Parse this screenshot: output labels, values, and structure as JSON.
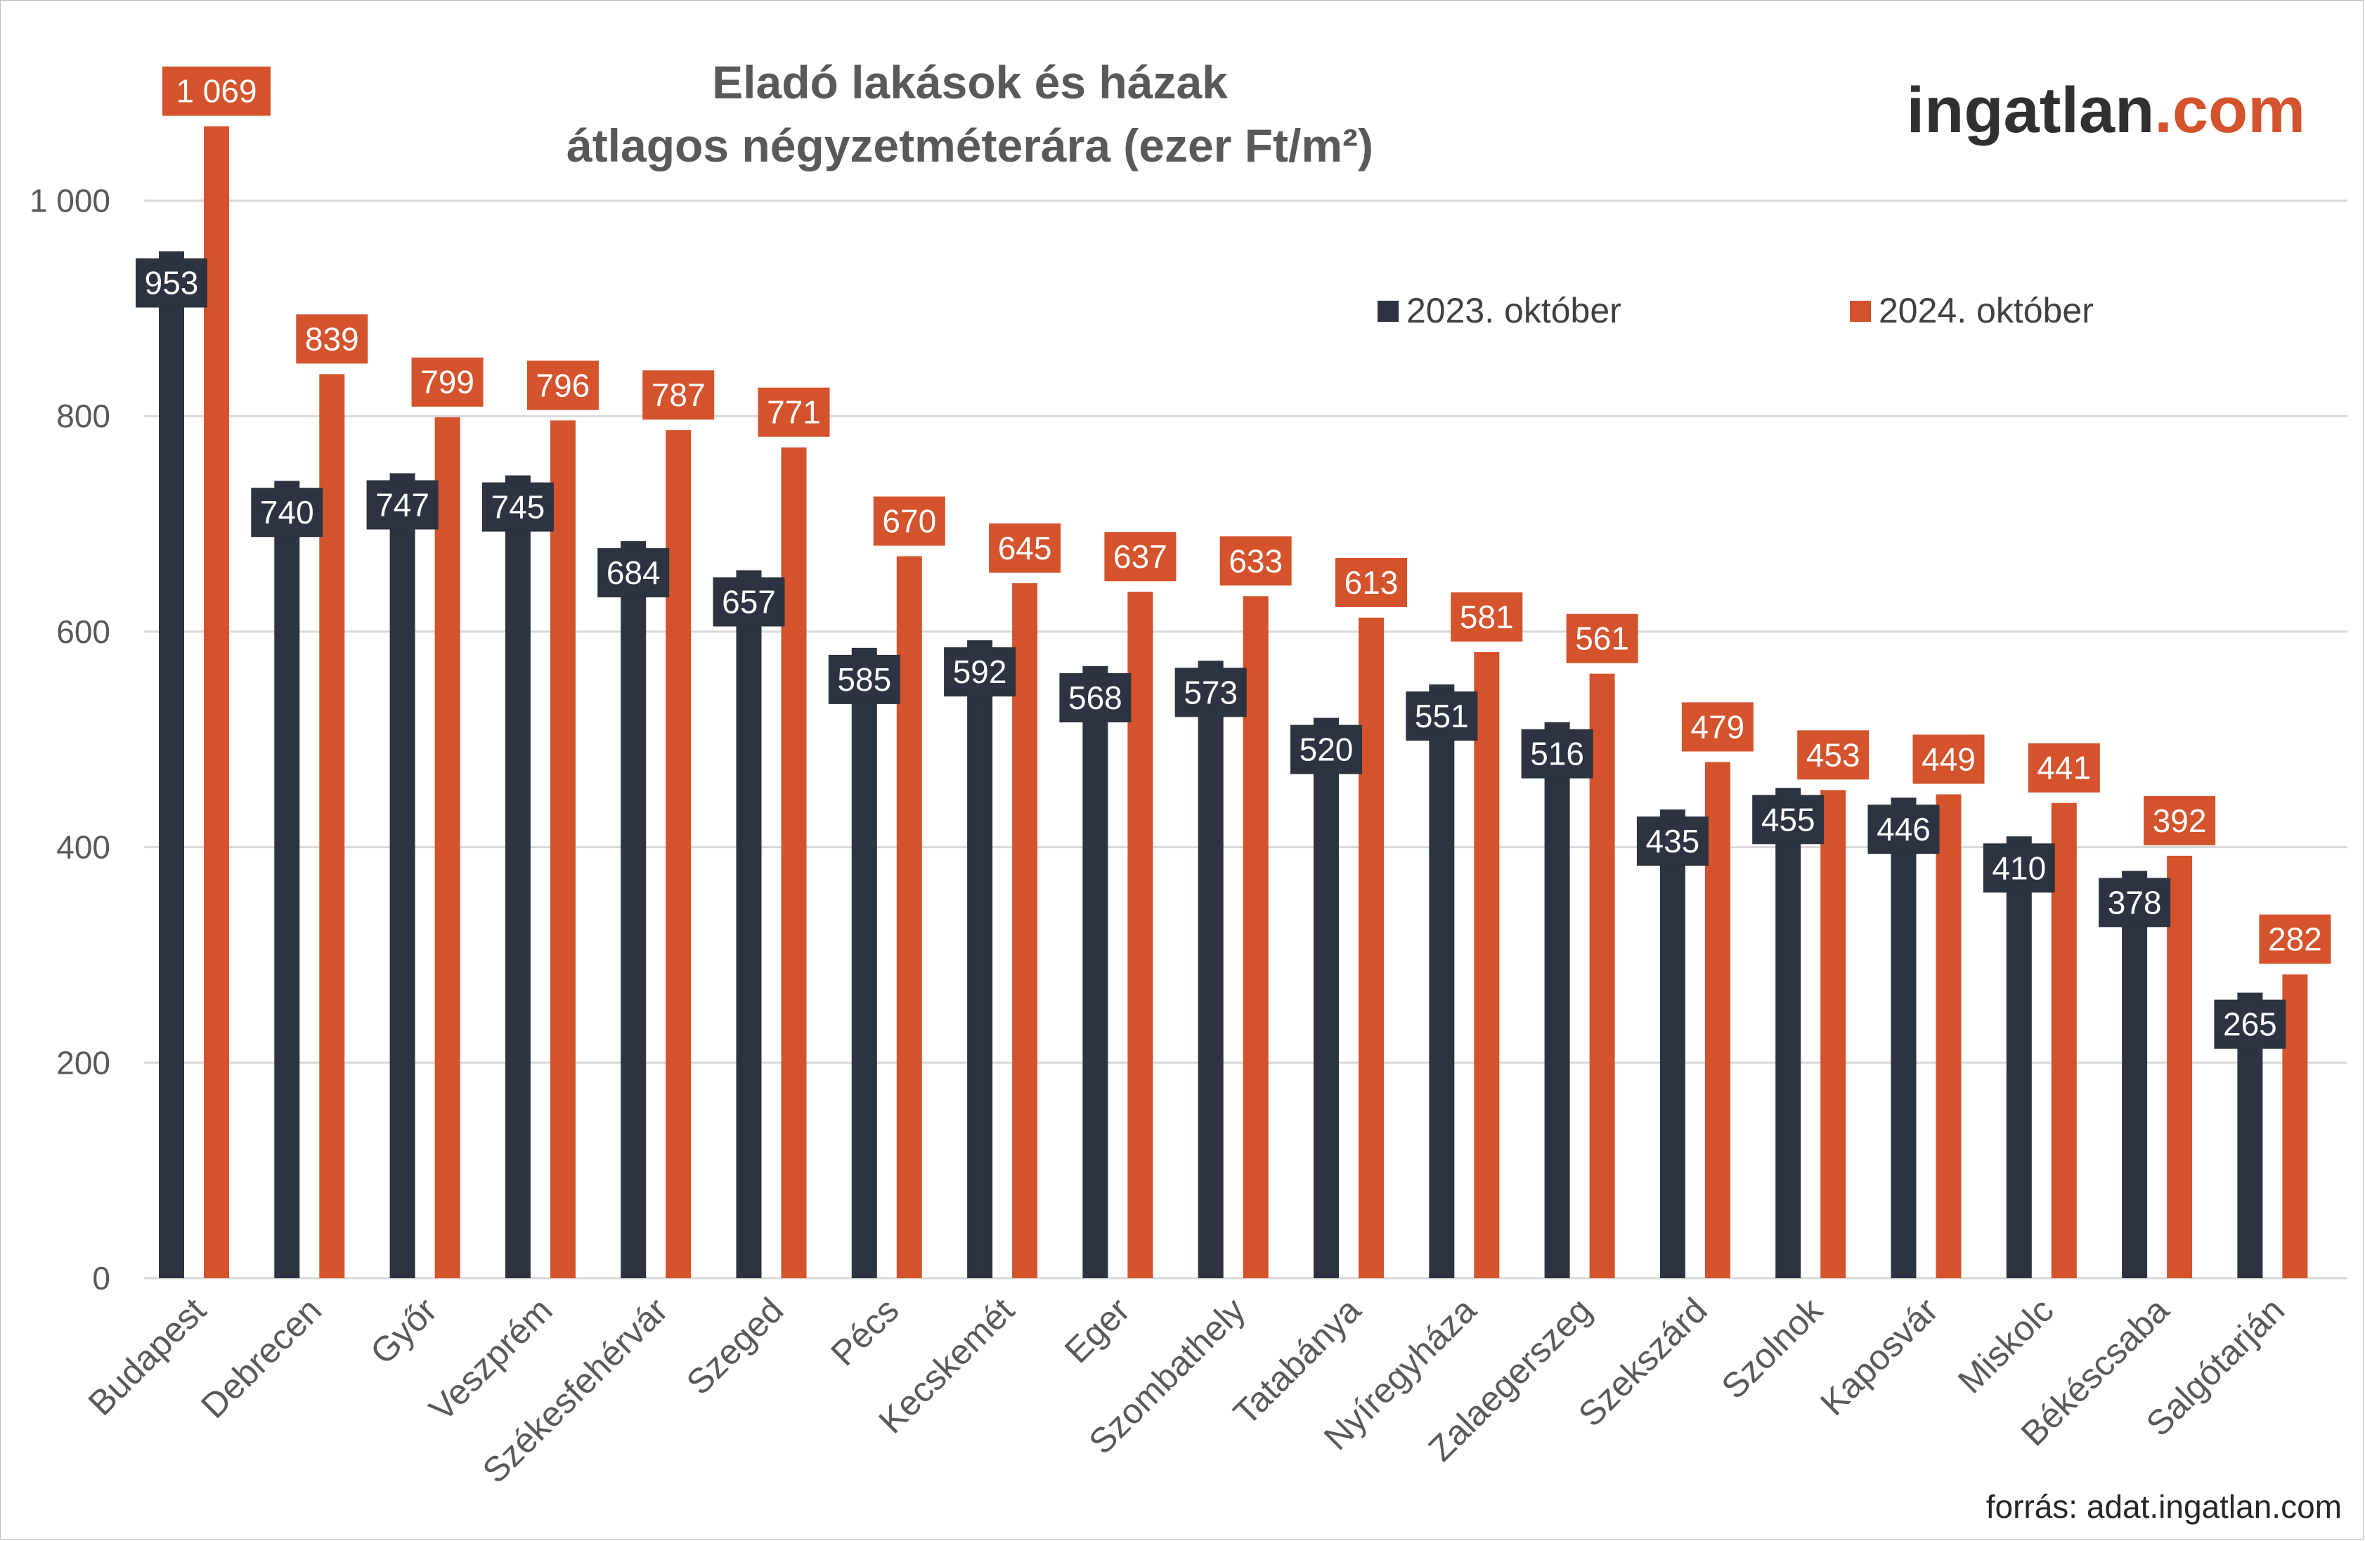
{
  "title": {
    "line1": "Eladó  lakások és házak",
    "line2": "átlagos négyzetméterára (ezer Ft/m²)"
  },
  "logo": {
    "part1": "ingatlan",
    "part2": ".com"
  },
  "source": "forrás: adat.ingatlan.com",
  "colors": {
    "series_2023": "#2d3340",
    "series_2024": "#d4532c",
    "grid": "#d9d9d9",
    "logo_dark": "#303030",
    "logo_accent": "#d4532c"
  },
  "chart_data": {
    "type": "bar",
    "title": "Eladó  lakások és házak átlagos négyzetméterára (ezer Ft/m²)",
    "ylim": [
      0,
      1100
    ],
    "yticks": [
      0,
      200,
      400,
      600,
      800,
      1000
    ],
    "ytick_labels": [
      "0",
      "200",
      "400",
      "600",
      "800",
      "1 000"
    ],
    "grid": true,
    "legend_position": "top-right",
    "categories": [
      "Budapest",
      "Debrecen",
      "Győr",
      "Veszprém",
      "Székesfehérvár",
      "Szeged",
      "Pécs",
      "Kecskemét",
      "Eger",
      "Szombathely",
      "Tatabánya",
      "Nyíregyháza",
      "Zalaegerszeg",
      "Szekszárd",
      "Szolnok",
      "Kaposvár",
      "Miskolc",
      "Békéscsaba",
      "Salgótarján"
    ],
    "series": [
      {
        "name": "2023. október",
        "color": "#2d3340",
        "values": [
          953,
          740,
          747,
          745,
          684,
          657,
          585,
          592,
          568,
          573,
          520,
          551,
          516,
          435,
          455,
          446,
          410,
          378,
          265
        ],
        "labels": [
          "953",
          "740",
          "747",
          "745",
          "684",
          "657",
          "585",
          "592",
          "568",
          "573",
          "520",
          "551",
          "516",
          "435",
          "455",
          "446",
          "410",
          "378",
          "265"
        ]
      },
      {
        "name": "2024. október",
        "color": "#d4532c",
        "values": [
          1069,
          839,
          799,
          796,
          787,
          771,
          670,
          645,
          637,
          633,
          613,
          581,
          561,
          479,
          453,
          449,
          441,
          392,
          282
        ],
        "labels": [
          "1 069",
          "839",
          "799",
          "796",
          "787",
          "771",
          "670",
          "645",
          "637",
          "633",
          "613",
          "581",
          "561",
          "479",
          "453",
          "449",
          "441",
          "392",
          "282"
        ]
      }
    ]
  }
}
